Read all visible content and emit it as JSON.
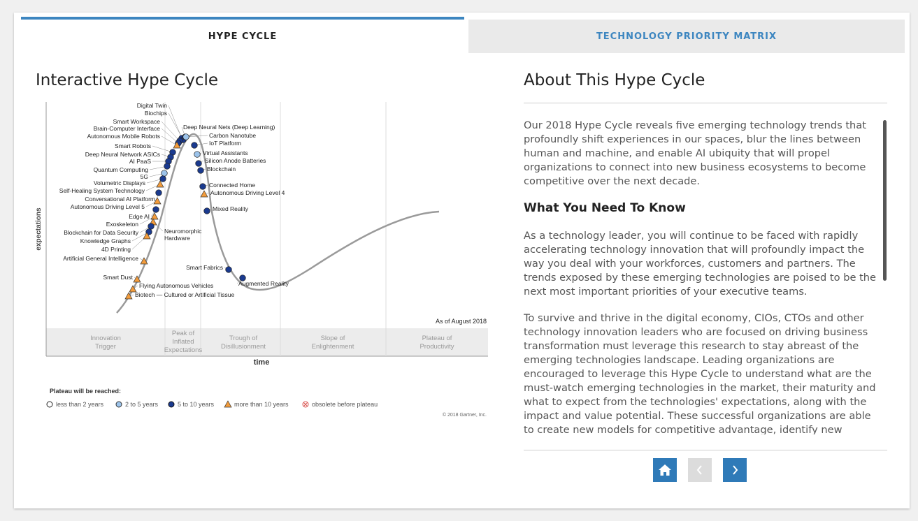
{
  "tabs": [
    {
      "label": "HYPE CYCLE",
      "active": true
    },
    {
      "label": "TECHNOLOGY PRIORITY MATRIX",
      "active": false
    }
  ],
  "left_title": "Interactive Hype Cycle",
  "right_title": "About This Hype Cycle",
  "chart": {
    "ylabel": "expectations",
    "xlabel": "time",
    "as_of": "As of August 2018",
    "phases": [
      [
        "Innovation",
        "Trigger"
      ],
      [
        "Peak of",
        "Inflated",
        "Expectations"
      ],
      [
        "Trough of",
        "Disillusionment"
      ],
      [
        "Slope of",
        "Enlightenment"
      ],
      [
        "Plateau of",
        "Productivity"
      ]
    ],
    "legend_title": "Plateau will be reached:",
    "legend": [
      "less than 2 years",
      "2 to 5 years",
      "5 to 10 years",
      "more than 10 years",
      "obsolete before plateau"
    ],
    "copyright": "© 2018 Gartner, Inc."
  },
  "chart_data": {
    "type": "scatter",
    "title": "",
    "xlabel": "time",
    "ylabel": "expectations",
    "series": [
      {
        "name": "2 to 5 years",
        "points": [
          "Carbon Nanotube",
          "Virtual Assistants",
          "5G"
        ]
      },
      {
        "name": "5 to 10 years",
        "points": [
          "Digital Twin",
          "Biochips",
          "Smart Workspace",
          "Brain-Computer Interface",
          "Deep Neural Nets (Deep Learning)",
          "IoT Platform",
          "Smart Robots",
          "Deep Neural Network ASICs",
          "AI PaaS",
          "Silicon Anode Batteries",
          "Quantum Computing",
          "Blockchain",
          "Volumetric Displays",
          "Connected Home",
          "Conversational AI Platform",
          "Edge AI",
          "Mixed Reality",
          "Blockchain for Data Security",
          "Knowledge Graphs",
          "Smart Fabrics",
          "Augmented Reality"
        ]
      },
      {
        "name": "more than 10 years",
        "points": [
          "Autonomous Mobile Robots",
          "Self-Healing System Technology",
          "Autonomous Driving Level 4",
          "Autonomous Driving Level 5",
          "Exoskeleton",
          "Neuromorphic Hardware",
          "4D Printing",
          "Artificial General Intelligence",
          "Smart Dust",
          "Flying Autonomous Vehicles",
          "Biotech — Cultured or Artificial Tissue"
        ]
      }
    ]
  },
  "about": {
    "intro": "Our 2018 Hype Cycle reveals five emerging technology trends that profoundly shift experiences in our spaces, blur the lines between human and machine, and enable AI ubiquity that will propel organizations to connect into new business ecosystems to become competitive over the next decade.",
    "heading": "What You Need To Know",
    "para1": "As a technology leader, you will continue to be faced with rapidly accelerating technology innovation that will profoundly impact the way you deal with your workforces, customers and partners. The trends exposed by these emerging technologies are poised to be the next most important priorities of your executive teams.",
    "para2": "To survive and thrive in the digital economy, CIOs, CTOs and other technology innovation leaders who are focused on driving business transformation must leverage this research to stay abreast of the emerging technologies landscape. Leading organizations are encouraged to leverage this Hype Cycle to understand what are the must-watch emerging technologies in the market, their maturity and what to expect from the technologies' expectations, along with the impact and value potential. These successful organizations are able to create new models for competitive advantage, identify new"
  },
  "colors": {
    "accent": "#2f7ab8",
    "dot_dark": "#1a3a8f",
    "dot_light": "#9cc3ea",
    "triangle": "#f39c3c"
  },
  "nav_icons": [
    "home-icon",
    "chevron-left-icon",
    "chevron-right-icon"
  ]
}
